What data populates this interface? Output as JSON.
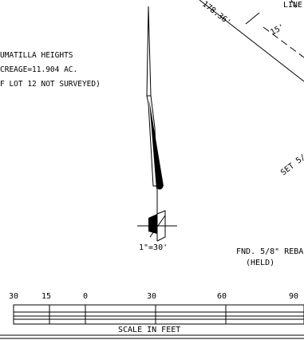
{
  "plat_note": {
    "line1": "UMATILLA HEIGHTS",
    "line2": "CREAGE=11.904 AC.",
    "line3": "F LOT 12 NOT SURVEYED)"
  },
  "boundary": {
    "distance_label": "178.36'",
    "line_label": "LINE",
    "setback_label": "15'"
  },
  "set_monument_label": "SET 5/",
  "found_monument": {
    "line1": "FND. 5/8\" REBA",
    "line2": "(HELD)"
  },
  "north_arrow": {
    "scale_label": "1\"=30'"
  },
  "scale_bar": {
    "tick_labels": [
      "30",
      "15",
      "0",
      "30",
      "60",
      "90"
    ],
    "caption": "SCALE IN FEET"
  }
}
